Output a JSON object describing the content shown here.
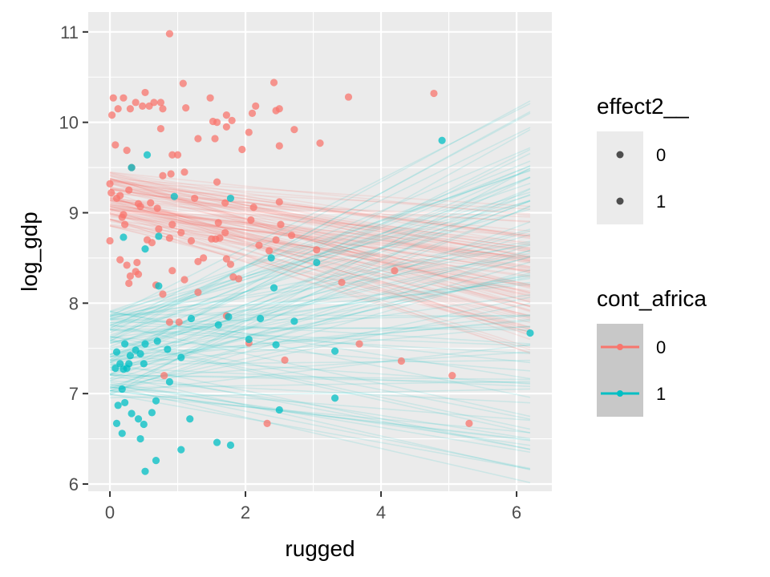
{
  "chart_data": {
    "type": "scatter",
    "xlabel": "rugged",
    "ylabel": "log_gdp",
    "xlim": [
      -0.32,
      6.52
    ],
    "ylim": [
      5.92,
      11.22
    ],
    "xticks": [
      "0",
      "2",
      "4",
      "6"
    ],
    "yticks": [
      "6",
      "7",
      "8",
      "9",
      "10",
      "11"
    ],
    "grid": true,
    "colors": {
      "group0": "#F8766D",
      "group1": "#00BFC4",
      "panel": "#EBEBEB",
      "grid": "#FFFFFF"
    },
    "series": [
      {
        "name": "0",
        "points": [
          [
            0.88,
            10.98
          ],
          [
            1.08,
            10.43
          ],
          [
            2.42,
            10.44
          ],
          [
            3.52,
            10.28
          ],
          [
            4.78,
            10.32
          ],
          [
            0.03,
            10.08
          ],
          [
            0.05,
            10.27
          ],
          [
            0.12,
            10.15
          ],
          [
            0.2,
            10.27
          ],
          [
            0.3,
            10.15
          ],
          [
            0.38,
            10.22
          ],
          [
            0.48,
            10.18
          ],
          [
            0.52,
            10.33
          ],
          [
            0.58,
            10.18
          ],
          [
            0.65,
            10.22
          ],
          [
            0.75,
            10.22
          ],
          [
            0.78,
            10.15
          ],
          [
            1.12,
            10.16
          ],
          [
            1.48,
            10.27
          ],
          [
            1.58,
            10.0
          ],
          [
            1.72,
            10.08
          ],
          [
            1.8,
            10.02
          ],
          [
            2.15,
            10.18
          ],
          [
            2.45,
            10.13
          ],
          [
            2.5,
            10.15
          ],
          [
            0.08,
            9.75
          ],
          [
            0.25,
            9.69
          ],
          [
            0.32,
            9.5
          ],
          [
            0.75,
            9.93
          ],
          [
            1.0,
            9.64
          ],
          [
            1.3,
            9.82
          ],
          [
            1.52,
            10.01
          ],
          [
            1.55,
            9.82
          ],
          [
            1.72,
            9.95
          ],
          [
            1.95,
            9.7
          ],
          [
            2.05,
            9.89
          ],
          [
            2.1,
            10.1
          ],
          [
            2.5,
            9.74
          ],
          [
            2.72,
            9.92
          ],
          [
            3.1,
            9.77
          ],
          [
            0.92,
            9.64
          ],
          [
            0.9,
            9.43
          ],
          [
            0.78,
            9.41
          ],
          [
            1.1,
            9.45
          ],
          [
            1.25,
            9.16
          ],
          [
            1.58,
            9.34
          ],
          [
            1.7,
            9.11
          ],
          [
            2.12,
            9.06
          ],
          [
            2.5,
            9.12
          ],
          [
            0.0,
            9.32
          ],
          [
            0.02,
            9.22
          ],
          [
            0.1,
            9.16
          ],
          [
            0.15,
            9.19
          ],
          [
            0.2,
            8.98
          ],
          [
            0.28,
            9.25
          ],
          [
            0.42,
            9.1
          ],
          [
            0.45,
            9.07
          ],
          [
            0.6,
            9.11
          ],
          [
            0.7,
            9.05
          ],
          [
            0.18,
            8.95
          ],
          [
            0.0,
            8.69
          ],
          [
            0.22,
            8.87
          ],
          [
            0.55,
            8.7
          ],
          [
            0.62,
            8.67
          ],
          [
            0.72,
            8.82
          ],
          [
            0.92,
            8.87
          ],
          [
            1.05,
            8.78
          ],
          [
            1.2,
            8.69
          ],
          [
            1.3,
            8.46
          ],
          [
            1.38,
            8.5
          ],
          [
            1.5,
            8.71
          ],
          [
            1.56,
            8.71
          ],
          [
            1.6,
            8.89
          ],
          [
            1.62,
            8.72
          ],
          [
            1.7,
            8.78
          ],
          [
            1.72,
            8.49
          ],
          [
            1.78,
            8.43
          ],
          [
            1.82,
            8.29
          ],
          [
            1.9,
            8.27
          ],
          [
            2.08,
            8.92
          ],
          [
            2.2,
            8.64
          ],
          [
            2.35,
            8.58
          ],
          [
            2.45,
            8.7
          ],
          [
            2.52,
            8.87
          ],
          [
            2.68,
            8.75
          ],
          [
            3.05,
            8.59
          ],
          [
            0.15,
            8.48
          ],
          [
            0.25,
            8.42
          ],
          [
            0.3,
            8.3
          ],
          [
            0.28,
            8.22
          ],
          [
            0.38,
            8.35
          ],
          [
            0.4,
            8.45
          ],
          [
            0.42,
            8.32
          ],
          [
            0.68,
            8.2
          ],
          [
            0.78,
            8.1
          ],
          [
            0.92,
            8.36
          ],
          [
            1.1,
            8.26
          ],
          [
            1.3,
            8.12
          ],
          [
            1.02,
            7.79
          ],
          [
            0.88,
            7.79
          ],
          [
            0.8,
            7.2
          ],
          [
            1.72,
            7.86
          ],
          [
            2.05,
            7.56
          ],
          [
            2.58,
            7.37
          ],
          [
            3.68,
            7.55
          ],
          [
            4.2,
            8.36
          ],
          [
            3.42,
            8.23
          ],
          [
            4.3,
            7.36
          ],
          [
            5.05,
            7.2
          ],
          [
            5.3,
            6.67
          ],
          [
            2.32,
            6.67
          ],
          [
            0.88,
            8.72
          ]
        ]
      },
      {
        "name": "1",
        "points": [
          [
            4.9,
            9.8
          ],
          [
            0.55,
            9.64
          ],
          [
            0.32,
            9.5
          ],
          [
            0.95,
            9.18
          ],
          [
            1.78,
            9.16
          ],
          [
            0.2,
            8.73
          ],
          [
            0.72,
            8.74
          ],
          [
            0.52,
            8.6
          ],
          [
            2.38,
            8.5
          ],
          [
            2.42,
            8.17
          ],
          [
            3.05,
            8.45
          ],
          [
            0.72,
            8.19
          ],
          [
            0.1,
            7.46
          ],
          [
            0.22,
            7.55
          ],
          [
            0.3,
            7.42
          ],
          [
            0.38,
            7.48
          ],
          [
            0.45,
            7.44
          ],
          [
            0.5,
            7.33
          ],
          [
            0.52,
            7.55
          ],
          [
            0.7,
            7.58
          ],
          [
            0.85,
            7.49
          ],
          [
            0.08,
            7.28
          ],
          [
            0.15,
            7.33
          ],
          [
            0.2,
            7.27
          ],
          [
            0.25,
            7.28
          ],
          [
            0.28,
            7.33
          ],
          [
            0.18,
            7.05
          ],
          [
            1.05,
            7.4
          ],
          [
            1.2,
            7.83
          ],
          [
            1.6,
            7.76
          ],
          [
            1.75,
            7.85
          ],
          [
            2.05,
            7.6
          ],
          [
            2.45,
            7.54
          ],
          [
            2.72,
            7.8
          ],
          [
            2.22,
            7.83
          ],
          [
            6.2,
            7.67
          ],
          [
            3.32,
            7.47
          ],
          [
            3.32,
            6.95
          ],
          [
            2.5,
            6.82
          ],
          [
            0.12,
            6.87
          ],
          [
            0.22,
            6.9
          ],
          [
            0.32,
            6.78
          ],
          [
            0.42,
            6.72
          ],
          [
            0.5,
            6.66
          ],
          [
            0.62,
            6.79
          ],
          [
            0.68,
            6.92
          ],
          [
            0.88,
            7.13
          ],
          [
            1.18,
            6.72
          ],
          [
            0.1,
            6.67
          ],
          [
            0.18,
            6.56
          ],
          [
            0.45,
            6.5
          ],
          [
            0.68,
            6.26
          ],
          [
            1.05,
            6.38
          ],
          [
            1.58,
            6.46
          ],
          [
            1.78,
            6.43
          ],
          [
            0.52,
            6.14
          ]
        ]
      }
    ],
    "regression_draws": [
      {
        "name": "0",
        "count": 100,
        "intercept_range": [
          8.85,
          9.45
        ],
        "slope_range": [
          -0.26,
          -0.03
        ],
        "x_range": [
          0.0,
          6.2
        ]
      },
      {
        "name": "1",
        "count": 100,
        "intercept_range": [
          6.95,
          7.92
        ],
        "slope_range": [
          -0.18,
          0.42
        ],
        "x_range": [
          0.0,
          6.2
        ]
      }
    ],
    "legends": [
      {
        "title": "effect2__",
        "labels": [
          "0",
          "1"
        ]
      },
      {
        "title": "cont_africa",
        "labels": [
          "0",
          "1"
        ]
      }
    ]
  }
}
